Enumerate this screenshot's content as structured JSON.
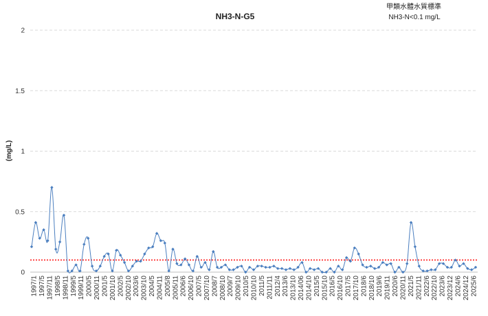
{
  "chart_data": {
    "type": "line",
    "title": "NH3-N-G5",
    "standard_title": "甲類水體水質標準",
    "standard_label": "NH3-N<0.1 mg/L",
    "xlabel": "",
    "ylabel": "(mg/L)",
    "ylim": [
      0,
      2
    ],
    "y_ticks": [
      "0",
      "0.5",
      "1",
      "1.5",
      "2"
    ],
    "grid": true,
    "legend": "none",
    "standard_value": 0.1,
    "colors": {
      "series": "#4a7ebf",
      "standard": "#ff0000",
      "grid": "#d9d9d9"
    },
    "x_tick_labels": [
      "1997/1",
      "1997/5",
      "1997/11",
      "1998/5",
      "1998/11",
      "1999/5",
      "1999/11",
      "2000/5",
      "2000/11",
      "2001/5",
      "2001/10",
      "2002/5",
      "2002/10",
      "2003/6",
      "2003/10",
      "2004/5",
      "2004/11",
      "2005/8",
      "2005/11",
      "2006/6",
      "2006/10",
      "2007/5",
      "2007/10",
      "2008/7",
      "2008/10",
      "2009/7",
      "2009/10",
      "2010/5",
      "2010/10",
      "2011/5",
      "2011/11",
      "2012/4",
      "2013/6",
      "2013/10",
      "2014/06",
      "2014/10",
      "2015/5",
      "2015/10",
      "2016/5",
      "2016/10",
      "2017/5",
      "2017/10",
      "2018/6",
      "2018/10",
      "2019/6",
      "2019/11",
      "2020/6",
      "2020/11",
      "2021/5",
      "2021/11",
      "2022/6",
      "2022/10",
      "2023/6",
      "2023/12",
      "2024/6",
      "2024/12",
      "2025/6"
    ],
    "series": [
      {
        "values": [
          0.21,
          0.41,
          0.28,
          0.35,
          0.26,
          0.7,
          0.19,
          0.25,
          0.47,
          0.01,
          0.01,
          0.06,
          0.01,
          0.23,
          0.28,
          0.05,
          0.01,
          0.05,
          0.13,
          0.15,
          0.01,
          0.18,
          0.14,
          0.08,
          0.01,
          0.05,
          0.09,
          0.09,
          0.15,
          0.2,
          0.21,
          0.32,
          0.26,
          0.24,
          0.01,
          0.19,
          0.07,
          0.06,
          0.11,
          0.06,
          0.01,
          0.13,
          0.04,
          0.08,
          0.02,
          0.17,
          0.04,
          0.04,
          0.06,
          0.02,
          0.02,
          0.04,
          0.05,
          0.0,
          0.04,
          0.02,
          0.05,
          0.05,
          0.04,
          0.04,
          0.05,
          0.03,
          0.03,
          0.02,
          0.03,
          0.02,
          0.04,
          0.08,
          0.0,
          0.03,
          0.02,
          0.03,
          0.0,
          0.0,
          0.03,
          0.0,
          0.05,
          0.02,
          0.12,
          0.09,
          0.2,
          0.15,
          0.06,
          0.04,
          0.05,
          0.03,
          0.04,
          0.08,
          0.06,
          0.07,
          0.0,
          0.04,
          0.0,
          0.07,
          0.41,
          0.21,
          0.05,
          0.01,
          0.01,
          0.02,
          0.02,
          0.07,
          0.07,
          0.04,
          0.04,
          0.1,
          0.05,
          0.07,
          0.03,
          0.02,
          0.04
        ]
      }
    ]
  }
}
